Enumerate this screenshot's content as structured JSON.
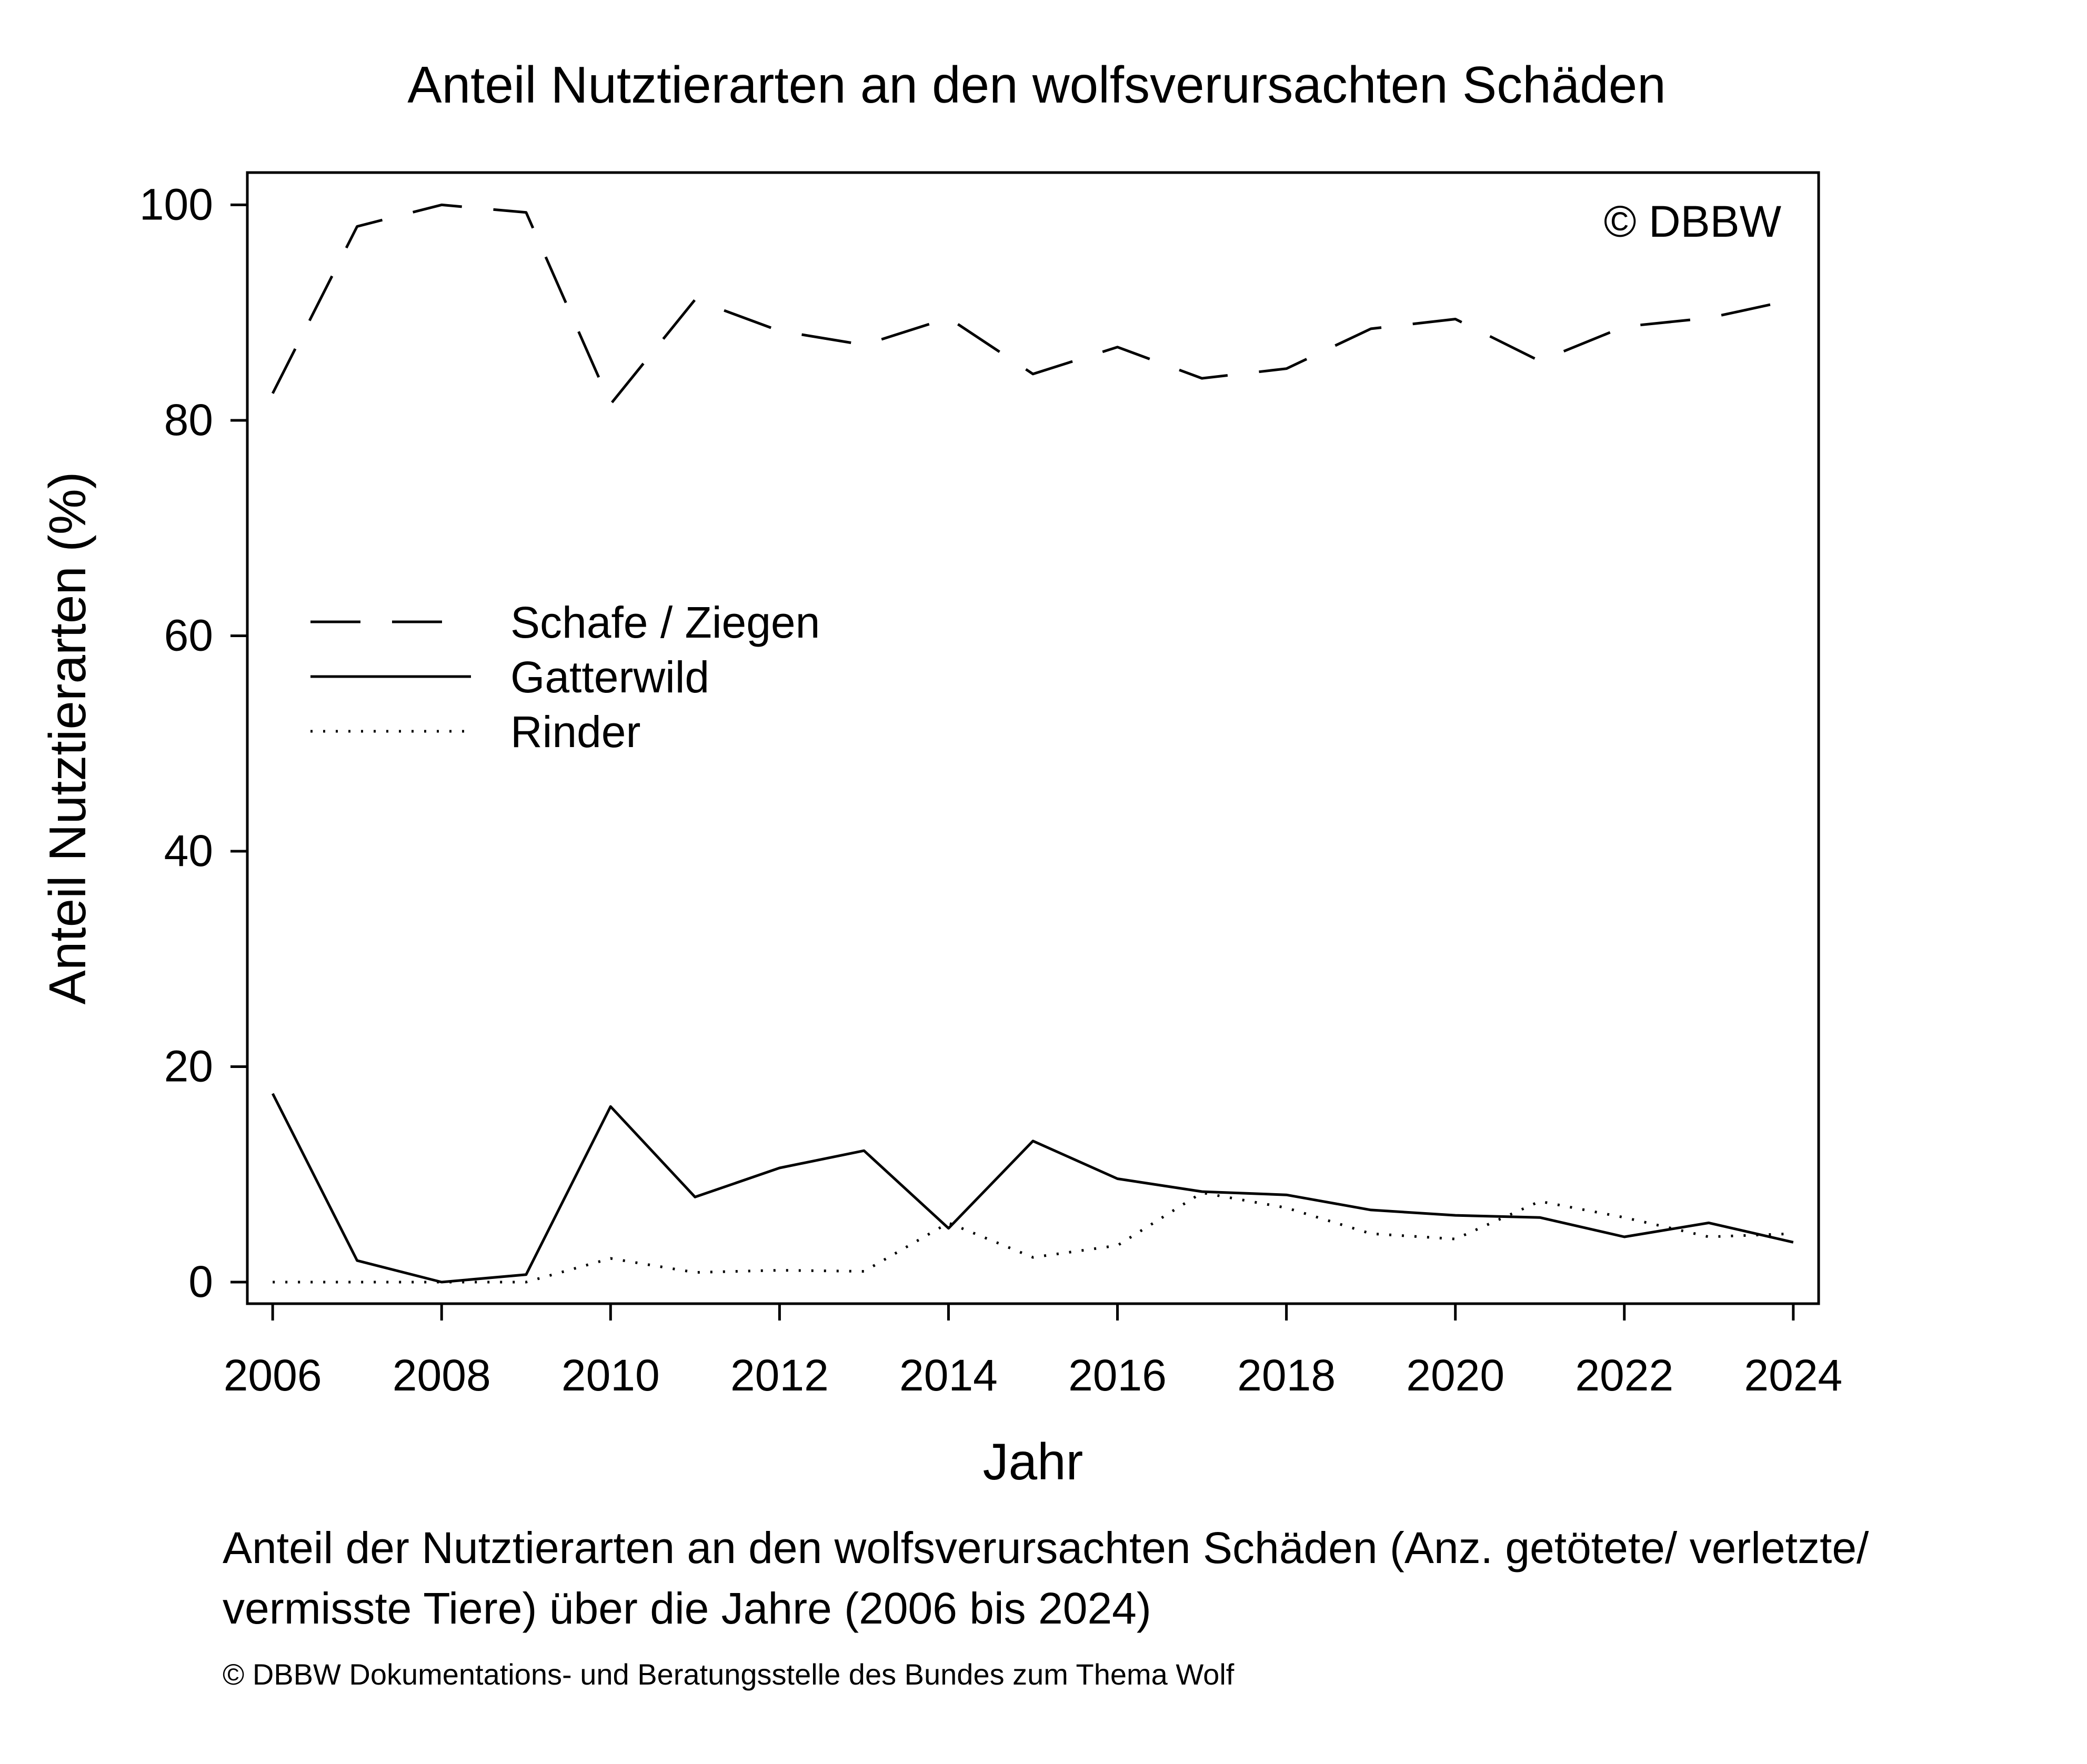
{
  "chart_data": {
    "type": "line",
    "title": "Anteil Nutztierarten an den wolfsverursachten Schäden",
    "xlabel": "Jahr",
    "ylabel": "Anteil Nutztierarten (%)",
    "x": [
      2006,
      2007,
      2008,
      2009,
      2010,
      2011,
      2012,
      2013,
      2014,
      2015,
      2016,
      2017,
      2018,
      2019,
      2020,
      2021,
      2022,
      2023,
      2024
    ],
    "xticks": [
      "2006",
      "2008",
      "2010",
      "2012",
      "2014",
      "2016",
      "2018",
      "2020",
      "2022",
      "2024"
    ],
    "yticks": [
      "0",
      "20",
      "40",
      "60",
      "80",
      "100"
    ],
    "xlim": [
      2005.7,
      2024.3
    ],
    "ylim": [
      -2,
      103
    ],
    "legend_position": "center-left",
    "grid": false,
    "annotation": "© DBBW",
    "series": [
      {
        "name": "Schafe / Ziegen",
        "style": "dashed",
        "values": [
          82.5,
          98,
          100,
          99.3,
          81.5,
          91.2,
          88.3,
          87,
          89.5,
          84.3,
          86.8,
          83.9,
          84.8,
          88.5,
          89.4,
          85.5,
          88.7,
          89.5,
          91.2
        ]
      },
      {
        "name": "Gatterwild",
        "style": "solid",
        "values": [
          17.5,
          2,
          0,
          0.7,
          16.3,
          7.9,
          10.6,
          12.2,
          5,
          13.1,
          9.6,
          8.4,
          8.1,
          6.7,
          6.2,
          6,
          4.2,
          5.5,
          3.7
        ]
      },
      {
        "name": "Rinder",
        "style": "dotted",
        "values": [
          0,
          0,
          0,
          0,
          2.2,
          0.9,
          1.1,
          1,
          5.5,
          2.3,
          3.4,
          8.3,
          6.9,
          4.5,
          4,
          7.5,
          6,
          4.2,
          4.5
        ]
      }
    ]
  },
  "caption": {
    "text": "Anteil der Nutztierarten an den wolfsverursachten Schäden (Anz. getötete/ verletzte/ vermisste Tiere) über die Jahre (2006 bis 2024)",
    "copyright": "© DBBW Dokumentations- und Beratungsstelle des Bundes zum Thema Wolf"
  }
}
